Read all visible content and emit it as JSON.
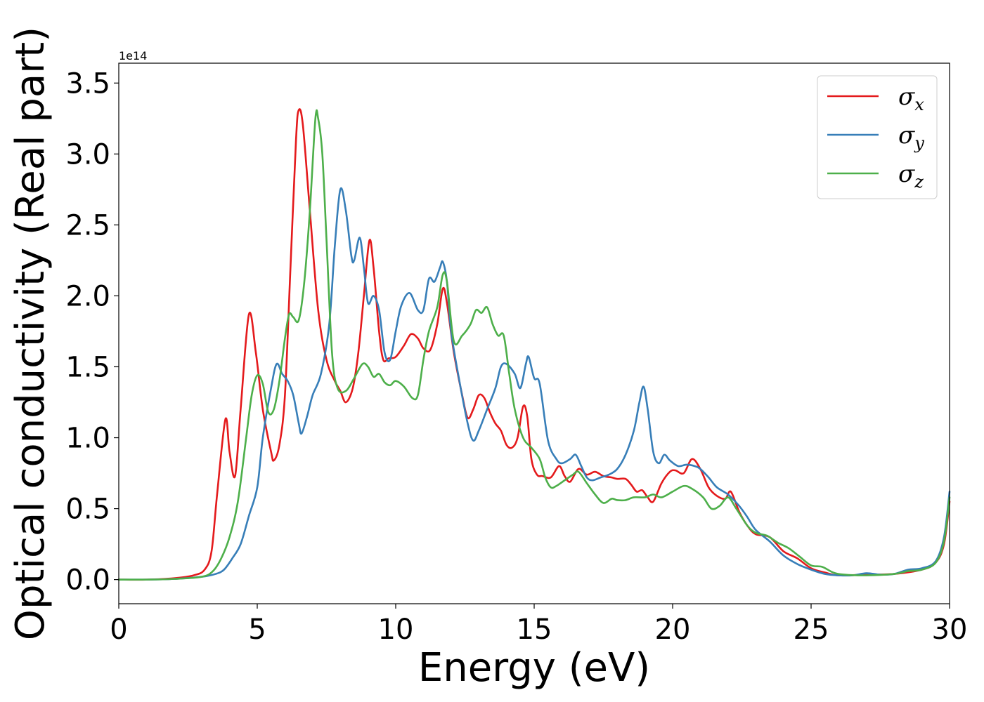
{
  "chart_data": {
    "type": "line",
    "xlabel": "Energy (eV)",
    "ylabel": "Optical conductivity (Real part)",
    "y_offset_text": "1e14",
    "xlim": [
      0,
      30
    ],
    "ylim": [
      -0.17,
      3.64
    ],
    "x_ticks": [
      0,
      5,
      10,
      15,
      20,
      25,
      30
    ],
    "x_tick_labels": [
      "0",
      "5",
      "10",
      "15",
      "20",
      "25",
      "30"
    ],
    "y_ticks": [
      0.0,
      0.5,
      1.0,
      1.5,
      2.0,
      2.5,
      3.0,
      3.5
    ],
    "y_tick_labels": [
      "0.0",
      "0.5",
      "1.0",
      "1.5",
      "2.0",
      "2.5",
      "3.0",
      "3.5"
    ],
    "grid": false,
    "legend_position": "top-right",
    "series": [
      {
        "name": "σx",
        "legend_base": "σ",
        "legend_sub": "x",
        "color": "#e41a1c",
        "points": [
          [
            0,
            0
          ],
          [
            1,
            0
          ],
          [
            2,
            0.01
          ],
          [
            2.7,
            0.03
          ],
          [
            3.1,
            0.07
          ],
          [
            3.35,
            0.2
          ],
          [
            3.55,
            0.6
          ],
          [
            3.85,
            1.13
          ],
          [
            4.0,
            0.9
          ],
          [
            4.2,
            0.73
          ],
          [
            4.4,
            1.2
          ],
          [
            4.7,
            1.87
          ],
          [
            4.95,
            1.6
          ],
          [
            5.2,
            1.2
          ],
          [
            5.5,
            0.9
          ],
          [
            5.6,
            0.84
          ],
          [
            5.8,
            0.95
          ],
          [
            6.0,
            1.3
          ],
          [
            6.2,
            2.2
          ],
          [
            6.4,
            3.1
          ],
          [
            6.5,
            3.31
          ],
          [
            6.65,
            3.2
          ],
          [
            6.9,
            2.6
          ],
          [
            7.2,
            1.9
          ],
          [
            7.5,
            1.55
          ],
          [
            7.8,
            1.4
          ],
          [
            8.0,
            1.33
          ],
          [
            8.2,
            1.25
          ],
          [
            8.45,
            1.35
          ],
          [
            8.65,
            1.6
          ],
          [
            8.85,
            2.0
          ],
          [
            9.05,
            2.39
          ],
          [
            9.2,
            2.2
          ],
          [
            9.4,
            1.75
          ],
          [
            9.55,
            1.55
          ],
          [
            9.75,
            1.56
          ],
          [
            10.0,
            1.57
          ],
          [
            10.3,
            1.65
          ],
          [
            10.55,
            1.73
          ],
          [
            10.8,
            1.7
          ],
          [
            11.0,
            1.63
          ],
          [
            11.25,
            1.62
          ],
          [
            11.5,
            1.8
          ],
          [
            11.7,
            2.05
          ],
          [
            11.85,
            1.95
          ],
          [
            12.1,
            1.6
          ],
          [
            12.4,
            1.3
          ],
          [
            12.6,
            1.14
          ],
          [
            12.8,
            1.2
          ],
          [
            13.0,
            1.3
          ],
          [
            13.2,
            1.28
          ],
          [
            13.4,
            1.18
          ],
          [
            13.6,
            1.1
          ],
          [
            13.8,
            1.05
          ],
          [
            14.0,
            0.95
          ],
          [
            14.2,
            0.93
          ],
          [
            14.4,
            1.0
          ],
          [
            14.6,
            1.22
          ],
          [
            14.75,
            1.15
          ],
          [
            14.9,
            0.85
          ],
          [
            15.1,
            0.74
          ],
          [
            15.3,
            0.73
          ],
          [
            15.6,
            0.72
          ],
          [
            15.9,
            0.8
          ],
          [
            16.1,
            0.73
          ],
          [
            16.3,
            0.69
          ],
          [
            16.6,
            0.78
          ],
          [
            16.9,
            0.74
          ],
          [
            17.2,
            0.76
          ],
          [
            17.5,
            0.73
          ],
          [
            17.8,
            0.72
          ],
          [
            18.0,
            0.71
          ],
          [
            18.3,
            0.71
          ],
          [
            18.5,
            0.67
          ],
          [
            18.7,
            0.62
          ],
          [
            18.9,
            0.63
          ],
          [
            19.1,
            0.58
          ],
          [
            19.3,
            0.55
          ],
          [
            19.6,
            0.68
          ],
          [
            19.9,
            0.76
          ],
          [
            20.1,
            0.77
          ],
          [
            20.4,
            0.75
          ],
          [
            20.7,
            0.85
          ],
          [
            21.0,
            0.78
          ],
          [
            21.3,
            0.65
          ],
          [
            21.6,
            0.59
          ],
          [
            21.9,
            0.57
          ],
          [
            22.1,
            0.62
          ],
          [
            22.4,
            0.48
          ],
          [
            22.7,
            0.38
          ],
          [
            23.0,
            0.32
          ],
          [
            23.5,
            0.3
          ],
          [
            24.0,
            0.2
          ],
          [
            24.5,
            0.15
          ],
          [
            25.0,
            0.08
          ],
          [
            25.5,
            0.05
          ],
          [
            26.0,
            0.03
          ],
          [
            27.0,
            0.035
          ],
          [
            28.0,
            0.04
          ],
          [
            29.0,
            0.07
          ],
          [
            29.5,
            0.12
          ],
          [
            29.8,
            0.25
          ],
          [
            30.0,
            0.55
          ]
        ]
      },
      {
        "name": "σy",
        "legend_base": "σ",
        "legend_sub": "y",
        "color": "#377eb8",
        "points": [
          [
            0,
            0
          ],
          [
            1,
            0
          ],
          [
            2,
            0.005
          ],
          [
            3,
            0.02
          ],
          [
            3.5,
            0.04
          ],
          [
            3.8,
            0.07
          ],
          [
            4.1,
            0.15
          ],
          [
            4.4,
            0.25
          ],
          [
            4.7,
            0.45
          ],
          [
            5.0,
            0.65
          ],
          [
            5.2,
            1.0
          ],
          [
            5.5,
            1.35
          ],
          [
            5.7,
            1.52
          ],
          [
            5.9,
            1.45
          ],
          [
            6.1,
            1.4
          ],
          [
            6.3,
            1.3
          ],
          [
            6.5,
            1.1
          ],
          [
            6.6,
            1.03
          ],
          [
            6.8,
            1.15
          ],
          [
            7.0,
            1.3
          ],
          [
            7.3,
            1.45
          ],
          [
            7.6,
            1.8
          ],
          [
            7.8,
            2.35
          ],
          [
            8.0,
            2.75
          ],
          [
            8.2,
            2.6
          ],
          [
            8.4,
            2.28
          ],
          [
            8.5,
            2.25
          ],
          [
            8.7,
            2.41
          ],
          [
            8.85,
            2.2
          ],
          [
            9.0,
            1.95
          ],
          [
            9.2,
            2.0
          ],
          [
            9.4,
            1.9
          ],
          [
            9.6,
            1.6
          ],
          [
            9.8,
            1.55
          ],
          [
            10.0,
            1.75
          ],
          [
            10.2,
            1.93
          ],
          [
            10.5,
            2.02
          ],
          [
            10.8,
            1.9
          ],
          [
            11.0,
            1.9
          ],
          [
            11.2,
            2.12
          ],
          [
            11.4,
            2.1
          ],
          [
            11.6,
            2.2
          ],
          [
            11.7,
            2.24
          ],
          [
            11.85,
            2.1
          ],
          [
            12.0,
            1.75
          ],
          [
            12.3,
            1.4
          ],
          [
            12.6,
            1.1
          ],
          [
            12.8,
            0.98
          ],
          [
            13.0,
            1.05
          ],
          [
            13.3,
            1.2
          ],
          [
            13.6,
            1.35
          ],
          [
            13.8,
            1.5
          ],
          [
            14.0,
            1.52
          ],
          [
            14.3,
            1.45
          ],
          [
            14.5,
            1.35
          ],
          [
            14.7,
            1.52
          ],
          [
            14.8,
            1.57
          ],
          [
            15.0,
            1.42
          ],
          [
            15.2,
            1.38
          ],
          [
            15.5,
            0.98
          ],
          [
            15.8,
            0.85
          ],
          [
            16.0,
            0.82
          ],
          [
            16.3,
            0.85
          ],
          [
            16.5,
            0.88
          ],
          [
            16.7,
            0.8
          ],
          [
            16.9,
            0.72
          ],
          [
            17.1,
            0.7
          ],
          [
            17.4,
            0.72
          ],
          [
            17.7,
            0.74
          ],
          [
            18.0,
            0.78
          ],
          [
            18.3,
            0.88
          ],
          [
            18.6,
            1.05
          ],
          [
            18.8,
            1.25
          ],
          [
            18.95,
            1.36
          ],
          [
            19.1,
            1.2
          ],
          [
            19.3,
            0.9
          ],
          [
            19.5,
            0.82
          ],
          [
            19.7,
            0.88
          ],
          [
            19.9,
            0.84
          ],
          [
            20.2,
            0.8
          ],
          [
            20.5,
            0.81
          ],
          [
            20.8,
            0.8
          ],
          [
            21.0,
            0.78
          ],
          [
            21.3,
            0.72
          ],
          [
            21.6,
            0.65
          ],
          [
            22.0,
            0.6
          ],
          [
            22.4,
            0.52
          ],
          [
            22.7,
            0.44
          ],
          [
            23.0,
            0.35
          ],
          [
            23.5,
            0.27
          ],
          [
            24.0,
            0.17
          ],
          [
            24.5,
            0.11
          ],
          [
            25.0,
            0.07
          ],
          [
            25.5,
            0.04
          ],
          [
            26.0,
            0.03
          ],
          [
            26.5,
            0.03
          ],
          [
            27.0,
            0.045
          ],
          [
            27.5,
            0.035
          ],
          [
            28.0,
            0.04
          ],
          [
            28.5,
            0.07
          ],
          [
            29.0,
            0.08
          ],
          [
            29.5,
            0.13
          ],
          [
            29.8,
            0.3
          ],
          [
            30.0,
            0.62
          ]
        ]
      },
      {
        "name": "σz",
        "legend_base": "σ",
        "legend_sub": "z",
        "color": "#4daf4a",
        "points": [
          [
            0,
            0
          ],
          [
            1,
            0
          ],
          [
            2,
            0.005
          ],
          [
            3,
            0.02
          ],
          [
            3.4,
            0.06
          ],
          [
            3.7,
            0.15
          ],
          [
            4.0,
            0.3
          ],
          [
            4.3,
            0.55
          ],
          [
            4.6,
            1.0
          ],
          [
            4.8,
            1.3
          ],
          [
            5.0,
            1.44
          ],
          [
            5.2,
            1.38
          ],
          [
            5.4,
            1.18
          ],
          [
            5.6,
            1.2
          ],
          [
            5.8,
            1.4
          ],
          [
            6.0,
            1.7
          ],
          [
            6.15,
            1.87
          ],
          [
            6.3,
            1.85
          ],
          [
            6.5,
            1.83
          ],
          [
            6.7,
            2.1
          ],
          [
            6.9,
            2.6
          ],
          [
            7.1,
            3.25
          ],
          [
            7.2,
            3.25
          ],
          [
            7.35,
            3.0
          ],
          [
            7.5,
            2.4
          ],
          [
            7.7,
            1.6
          ],
          [
            7.9,
            1.35
          ],
          [
            8.2,
            1.33
          ],
          [
            8.5,
            1.42
          ],
          [
            8.8,
            1.52
          ],
          [
            9.0,
            1.5
          ],
          [
            9.2,
            1.43
          ],
          [
            9.4,
            1.45
          ],
          [
            9.6,
            1.39
          ],
          [
            9.8,
            1.37
          ],
          [
            10.0,
            1.4
          ],
          [
            10.3,
            1.36
          ],
          [
            10.6,
            1.28
          ],
          [
            10.8,
            1.3
          ],
          [
            11.0,
            1.55
          ],
          [
            11.2,
            1.75
          ],
          [
            11.5,
            1.92
          ],
          [
            11.7,
            2.15
          ],
          [
            11.85,
            2.1
          ],
          [
            12.1,
            1.68
          ],
          [
            12.4,
            1.72
          ],
          [
            12.7,
            1.8
          ],
          [
            12.9,
            1.9
          ],
          [
            13.1,
            1.88
          ],
          [
            13.3,
            1.92
          ],
          [
            13.5,
            1.8
          ],
          [
            13.7,
            1.72
          ],
          [
            13.9,
            1.72
          ],
          [
            14.1,
            1.45
          ],
          [
            14.3,
            1.2
          ],
          [
            14.6,
            1.0
          ],
          [
            14.9,
            0.93
          ],
          [
            15.2,
            0.85
          ],
          [
            15.4,
            0.72
          ],
          [
            15.6,
            0.65
          ],
          [
            15.8,
            0.66
          ],
          [
            16.1,
            0.7
          ],
          [
            16.4,
            0.74
          ],
          [
            16.6,
            0.76
          ],
          [
            16.9,
            0.68
          ],
          [
            17.2,
            0.6
          ],
          [
            17.5,
            0.54
          ],
          [
            17.8,
            0.57
          ],
          [
            18.0,
            0.56
          ],
          [
            18.3,
            0.56
          ],
          [
            18.6,
            0.58
          ],
          [
            19.0,
            0.58
          ],
          [
            19.3,
            0.6
          ],
          [
            19.6,
            0.58
          ],
          [
            20.0,
            0.62
          ],
          [
            20.4,
            0.66
          ],
          [
            20.7,
            0.64
          ],
          [
            21.1,
            0.58
          ],
          [
            21.4,
            0.5
          ],
          [
            21.7,
            0.52
          ],
          [
            22.0,
            0.58
          ],
          [
            22.3,
            0.5
          ],
          [
            22.7,
            0.38
          ],
          [
            23.0,
            0.33
          ],
          [
            23.4,
            0.31
          ],
          [
            23.8,
            0.26
          ],
          [
            24.2,
            0.22
          ],
          [
            24.6,
            0.16
          ],
          [
            25.0,
            0.1
          ],
          [
            25.4,
            0.09
          ],
          [
            25.8,
            0.05
          ],
          [
            26.2,
            0.035
          ],
          [
            27.0,
            0.03
          ],
          [
            28.0,
            0.04
          ],
          [
            28.5,
            0.06
          ],
          [
            29.0,
            0.07
          ],
          [
            29.5,
            0.12
          ],
          [
            29.8,
            0.27
          ],
          [
            30.0,
            0.58
          ]
        ]
      }
    ]
  }
}
